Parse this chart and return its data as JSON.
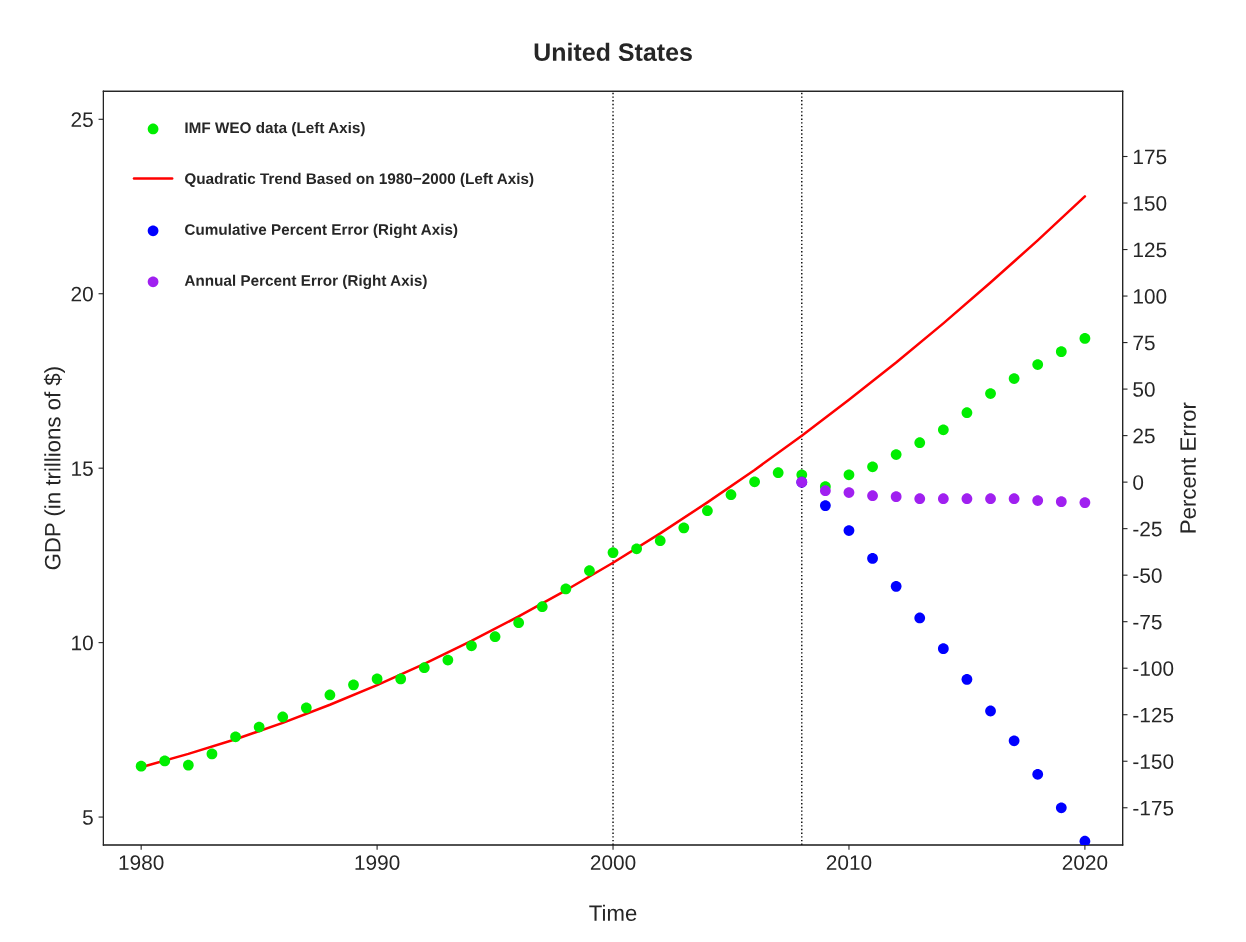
{
  "chart_data": {
    "type": "scatter",
    "title": "United States",
    "xlabel": "Time",
    "ylabel": "GDP (in trillions of $)",
    "y2label": "Percent Error",
    "xlim": [
      1978.4,
      2021.6
    ],
    "xticks": [
      1980,
      1990,
      2000,
      2010,
      2020
    ],
    "ylim": [
      4.2,
      25.8
    ],
    "yticks": [
      5,
      10,
      15,
      20,
      25
    ],
    "y2lim": [
      -195,
      210
    ],
    "y2ticks": [
      -175,
      -150,
      -125,
      -100,
      -75,
      -50,
      -25,
      0,
      25,
      50,
      75,
      100,
      125,
      150,
      175
    ],
    "grid": false,
    "legend": "top left",
    "marker": "circle",
    "ref_lines": [
      {
        "axis": "x",
        "value": 2000,
        "color": "#000000",
        "line_style": "dotted"
      },
      {
        "axis": "x",
        "value": 2008,
        "color": "#000000",
        "line_style": "dotted"
      }
    ],
    "series": [
      {
        "name": "IMF WEO data (Left Axis)",
        "color": "#00ee00",
        "x": [
          1980,
          1981,
          1982,
          1983,
          1984,
          1985,
          1986,
          1987,
          1988,
          1989,
          1990,
          1991,
          1992,
          1993,
          1994,
          1995,
          1996,
          1997,
          1998,
          1999,
          2000,
          2001,
          2002,
          2003,
          2004,
          2005,
          2006,
          2007,
          2008,
          2009,
          2010,
          2011,
          2012,
          2013,
          2014,
          2015,
          2016,
          2017,
          2018,
          2019,
          2020
        ],
        "values": [
          6.46,
          6.61,
          6.49,
          6.81,
          7.3,
          7.58,
          7.87,
          8.13,
          8.5,
          8.79,
          8.96,
          8.96,
          9.28,
          9.5,
          9.91,
          10.17,
          10.57,
          11.03,
          11.54,
          12.06,
          12.58,
          12.69,
          12.92,
          13.29,
          13.78,
          14.24,
          14.61,
          14.87,
          14.81,
          14.47,
          14.81,
          15.04,
          15.39,
          15.73,
          16.1,
          16.59,
          17.14,
          17.57,
          17.97,
          18.34,
          18.72
        ]
      },
      {
        "name": "Quadratic Trend Based on 1980−2000 (Left Axis)",
        "type": "line",
        "color": "#ff0000",
        "marker": "none",
        "line_style": "solid",
        "x": [
          1980,
          1982,
          1984,
          1986,
          1988,
          1990,
          1992,
          1994,
          1996,
          1998,
          2000,
          2002,
          2004,
          2006,
          2008,
          2010,
          2012,
          2014,
          2016,
          2018,
          2020
        ],
        "values": [
          6.43,
          6.81,
          7.23,
          7.7,
          8.22,
          8.78,
          9.39,
          10.05,
          10.75,
          11.5,
          12.29,
          13.13,
          14.02,
          14.95,
          15.93,
          16.96,
          18.03,
          19.15,
          20.32,
          21.53,
          22.79
        ]
      },
      {
        "name": "Cumulative Percent Error (Right Axis)",
        "type": "scatter",
        "axis": "y2",
        "color": "#0000ff",
        "x": [
          2008,
          2009,
          2010,
          2011,
          2012,
          2013,
          2014,
          2015,
          2016,
          2017,
          2018,
          2019,
          2020
        ],
        "values": [
          0,
          -12.6,
          -26,
          -41,
          -56,
          -73,
          -89.5,
          -106,
          -123,
          -139,
          -157,
          -175,
          -193
        ]
      },
      {
        "name": "Annual Percent Error (Right Axis)",
        "type": "scatter",
        "axis": "y2",
        "color": "#a020f0",
        "x": [
          2008,
          2009,
          2010,
          2011,
          2012,
          2013,
          2014,
          2015,
          2016,
          2017,
          2018,
          2019,
          2020
        ],
        "values": [
          0,
          -4.6,
          -5.6,
          -7.3,
          -7.8,
          -8.9,
          -8.9,
          -8.9,
          -8.9,
          -8.9,
          -9.9,
          -10.5,
          -11
        ]
      }
    ]
  }
}
